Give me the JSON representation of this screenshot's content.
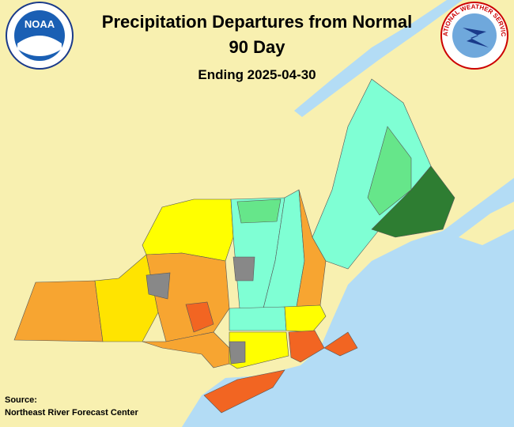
{
  "header": {
    "title": "Precipitation Departures from Normal",
    "period": "90 Day",
    "ending": "Ending 2025-04-30"
  },
  "logos": {
    "noaa": "NOAA",
    "nws": "NATIONAL WEATHER SERVICE"
  },
  "source": {
    "label": "Source:",
    "name": "Northeast River Forecast Center"
  }
}
